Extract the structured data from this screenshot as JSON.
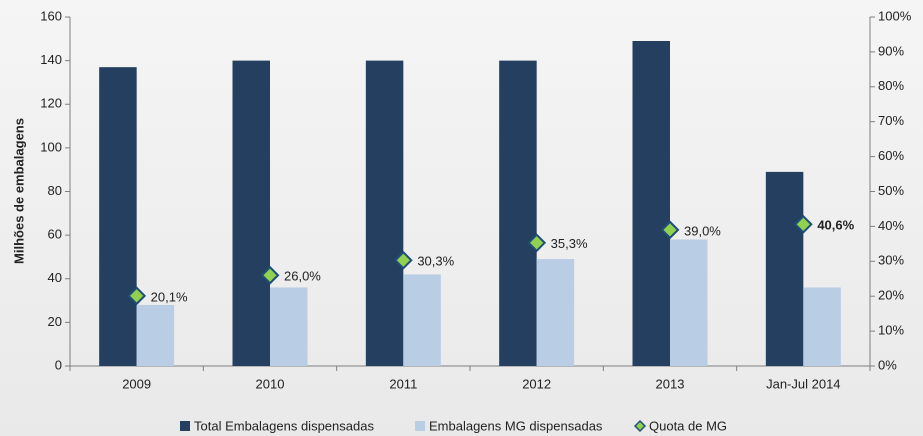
{
  "chart_data": {
    "type": "bar",
    "categories": [
      "2009",
      "2010",
      "2011",
      "2012",
      "2013",
      "Jan-Jul 2014"
    ],
    "y_label": "Milhões de embalagens",
    "series": [
      {
        "name": "Total Embalagens dispensadas",
        "type": "bar",
        "color": "#243f60",
        "values": [
          137,
          140,
          140,
          140,
          149,
          89
        ]
      },
      {
        "name": "Embalagens MG dispensadas",
        "type": "bar",
        "color": "#b9cde5",
        "values": [
          28,
          36,
          42,
          49,
          58,
          36
        ]
      },
      {
        "name": "Quota de MG",
        "type": "line",
        "axis": "y2",
        "color": "#92d050",
        "values": [
          20.1,
          26.0,
          30.3,
          35.3,
          39.0,
          40.6
        ],
        "value_labels": [
          "20,1%",
          "26,0%",
          "30,3%",
          "35,3%",
          "39,0%",
          "40,6%"
        ]
      }
    ],
    "ylim": [
      0,
      160
    ],
    "yticks": [
      0,
      20,
      40,
      60,
      80,
      100,
      120,
      140,
      160
    ],
    "y2lim": [
      0,
      100
    ],
    "y2ticks": [
      {
        "value": 0,
        "label": "0%"
      },
      {
        "value": 10,
        "label": "10%"
      },
      {
        "value": 20,
        "label": "20%"
      },
      {
        "value": 30,
        "label": "30%"
      },
      {
        "value": 40,
        "label": "40%"
      },
      {
        "value": 50,
        "label": "50%"
      },
      {
        "value": 60,
        "label": "60%"
      },
      {
        "value": 70,
        "label": "70%"
      },
      {
        "value": 80,
        "label": "80%"
      },
      {
        "value": 90,
        "label": "90%"
      },
      {
        "value": 100,
        "label": "100%"
      }
    ],
    "legend": "bottom"
  }
}
